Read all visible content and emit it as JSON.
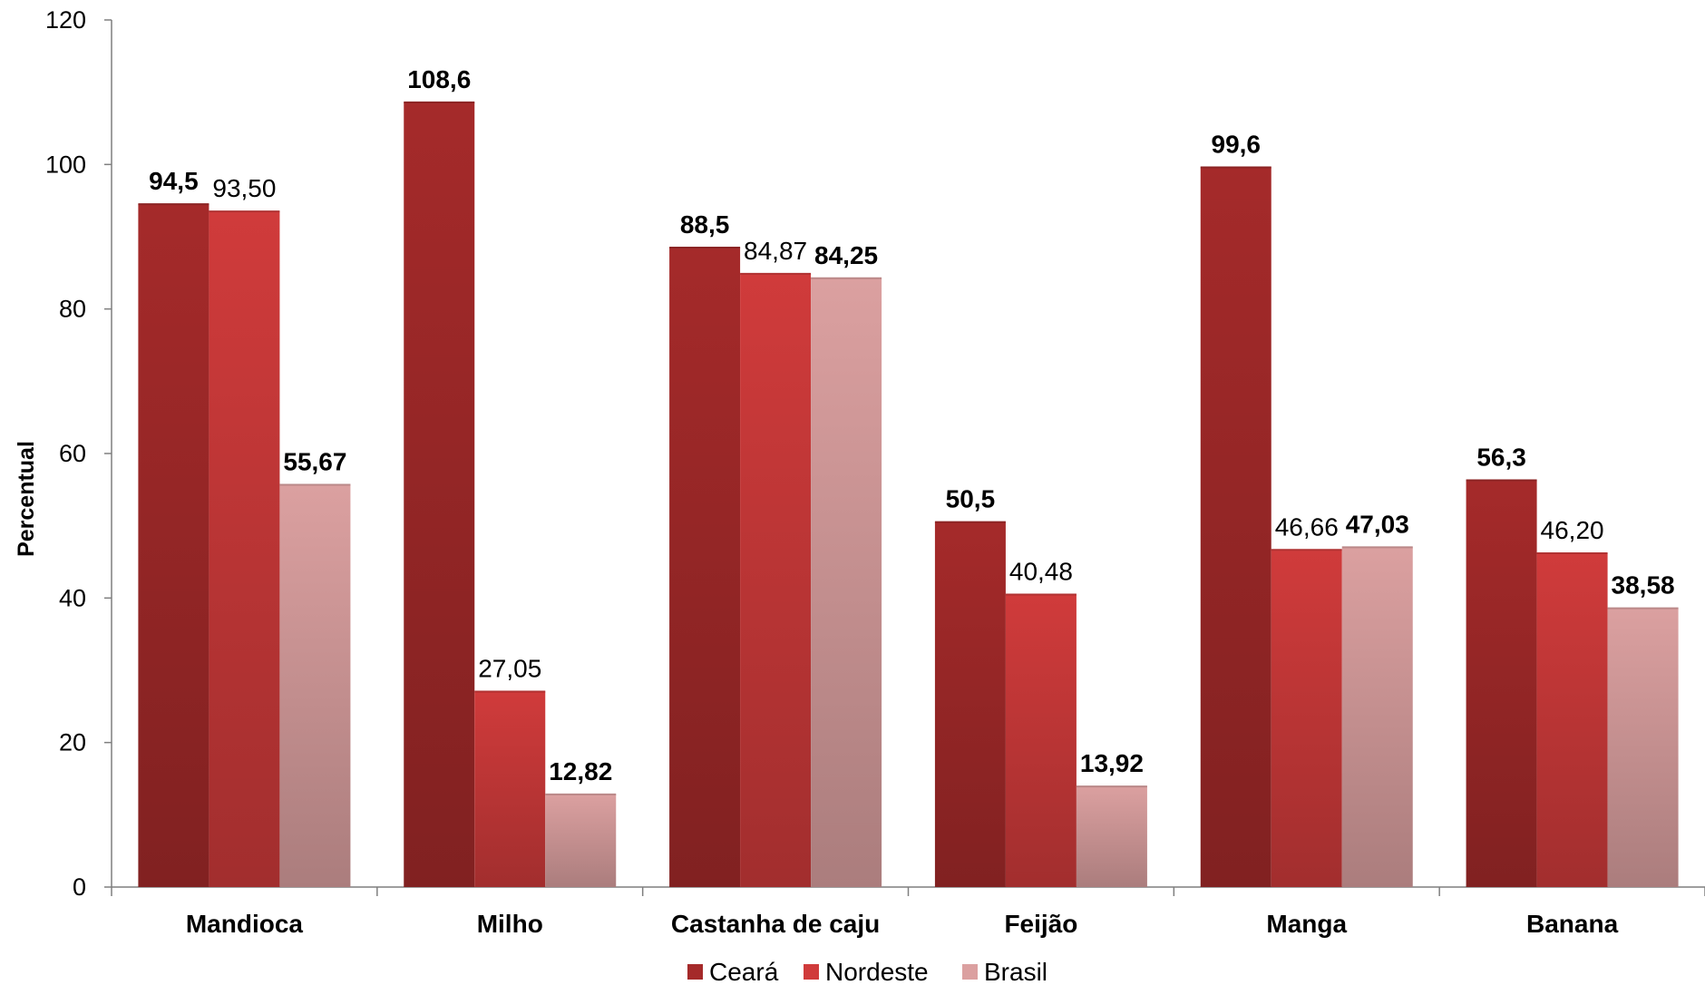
{
  "chart_data": {
    "type": "bar",
    "title": "",
    "xlabel": "",
    "ylabel": "Percentual",
    "ylim": [
      0,
      120
    ],
    "yticks": [
      0,
      20,
      40,
      60,
      80,
      100,
      120
    ],
    "grid": false,
    "legend_position": "bottom",
    "categories": [
      "Mandioca",
      "Milho",
      "Castanha de caju",
      "Feijão",
      "Manga",
      "Banana"
    ],
    "series": [
      {
        "name": "Ceará",
        "color": "#a52a2a",
        "values": [
          94.5,
          108.6,
          88.5,
          50.5,
          99.6,
          56.3
        ],
        "labels": [
          "94,5",
          "108,6",
          "88,5",
          "50,5",
          "99,6",
          "56,3"
        ],
        "label_bold": [
          true,
          true,
          true,
          true,
          true,
          true
        ]
      },
      {
        "name": "Nordeste",
        "color": "#d03b3b",
        "values": [
          93.5,
          27.05,
          84.87,
          40.48,
          46.66,
          46.2
        ],
        "labels": [
          "93,50",
          "27,05",
          "84,87",
          "40,48",
          "46,66",
          "46,20"
        ],
        "label_bold": [
          false,
          false,
          false,
          false,
          false,
          false
        ]
      },
      {
        "name": "Brasil",
        "color": "#dba0a0",
        "values": [
          55.67,
          12.82,
          84.25,
          13.92,
          47.03,
          38.58
        ],
        "labels": [
          "55,67",
          "12,82",
          "84,25",
          "13,92",
          "47,03",
          "38,58"
        ],
        "label_bold": [
          true,
          true,
          true,
          true,
          true,
          true
        ]
      }
    ]
  }
}
